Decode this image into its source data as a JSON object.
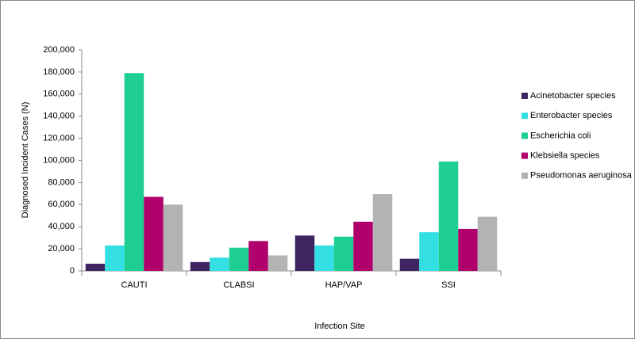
{
  "chart_data": {
    "type": "bar",
    "x_label": "Infection Site",
    "y_label": "Diagnosed Incident  Cases (N)",
    "categories": [
      "CAUTI",
      "CLABSI",
      "HAP/VAP",
      "SSI"
    ],
    "series": [
      {
        "name": "Acinetobacter species",
        "color": "#3e2560",
        "values": [
          6500,
          8000,
          32000,
          11000
        ]
      },
      {
        "name": "Enterobacter species",
        "color": "#33dfe3",
        "values": [
          23000,
          12000,
          23000,
          35000
        ]
      },
      {
        "name": "Escherichia coli",
        "color": "#1fcf92",
        "values": [
          179000,
          21000,
          31000,
          99000
        ]
      },
      {
        "name": "Klebsiella species",
        "color": "#b0006b",
        "values": [
          67000,
          27000,
          44500,
          38000
        ]
      },
      {
        "name": "Pseudomonas aeruginosa",
        "color": "#b3b3b3",
        "values": [
          60000,
          14000,
          69500,
          49000
        ]
      }
    ],
    "ylim": [
      0,
      200000
    ],
    "yticks": [
      0,
      {
        "value": 20000,
        "label": "20,000"
      },
      {
        "value": 40000,
        "label": "40,000"
      },
      {
        "value": 60000,
        "label": "60,000"
      },
      {
        "value": 80000,
        "label": "80,000"
      },
      {
        "value": 100000,
        "label": "100,000"
      },
      {
        "value": 120000,
        "label": "120,000"
      },
      {
        "value": 140000,
        "label": "140,000"
      },
      {
        "value": 160000,
        "label": "160,000"
      },
      {
        "value": 180000,
        "label": "180,000"
      },
      {
        "value": 200000,
        "label": "200,000"
      }
    ],
    "legend": "right",
    "grid": false
  }
}
